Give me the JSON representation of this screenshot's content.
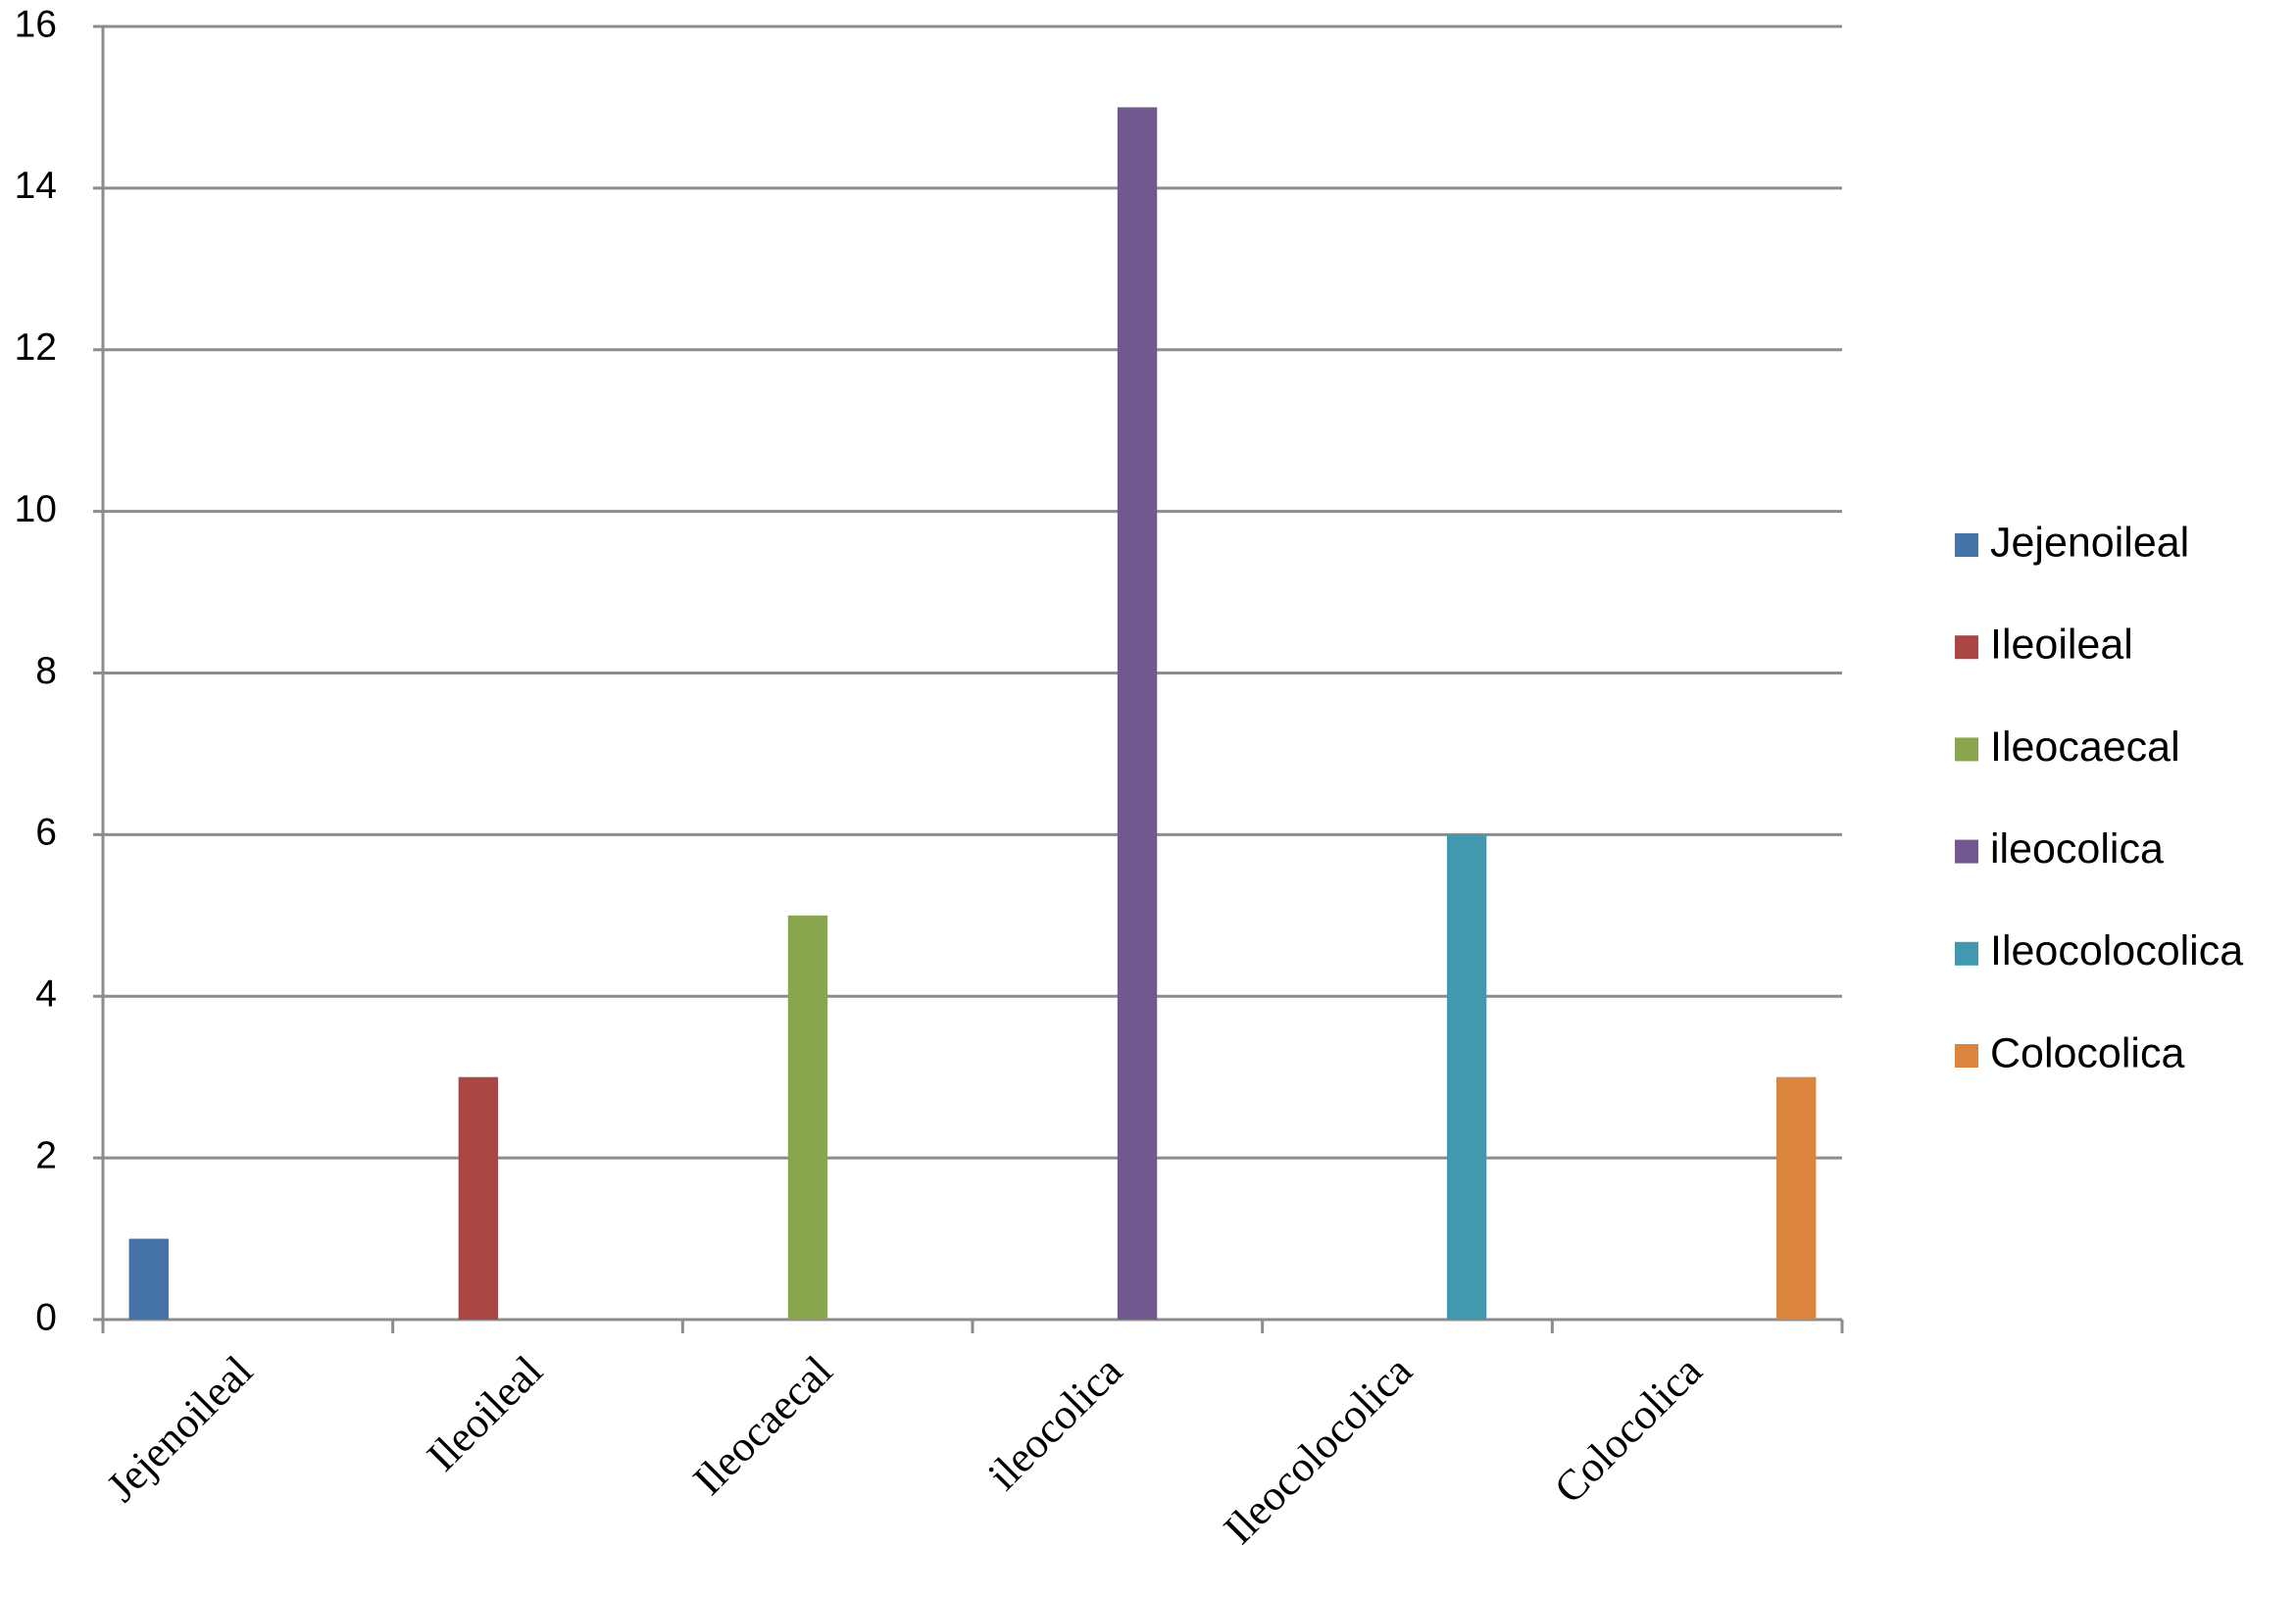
{
  "chart_data": {
    "type": "bar",
    "categories": [
      "Jejenoileal",
      "Ileoileal",
      "Ileocaecal",
      "ileocolica",
      "Ileocolocolica",
      "Colocolica"
    ],
    "series": [
      {
        "name": "Jejenoileal",
        "color": "#4572a7",
        "values": [
          1,
          null,
          null,
          null,
          null,
          null
        ]
      },
      {
        "name": "Ileoileal",
        "color": "#aa4643",
        "values": [
          null,
          3,
          null,
          null,
          null,
          null
        ]
      },
      {
        "name": "Ileocaecal",
        "color": "#89a54e",
        "values": [
          null,
          null,
          5,
          null,
          null,
          null
        ]
      },
      {
        "name": "ileocolica",
        "color": "#71588f",
        "values": [
          null,
          null,
          null,
          15,
          null,
          null
        ]
      },
      {
        "name": "Ileocolocolica",
        "color": "#4198af",
        "values": [
          null,
          null,
          null,
          null,
          6,
          null
        ]
      },
      {
        "name": "Colocolica",
        "color": "#db843d",
        "values": [
          null,
          null,
          null,
          null,
          null,
          3
        ]
      }
    ],
    "ylim": [
      0,
      16
    ],
    "yticks": [
      0,
      2,
      4,
      6,
      8,
      10,
      12,
      14,
      16
    ],
    "grid": true,
    "legend": "right"
  }
}
